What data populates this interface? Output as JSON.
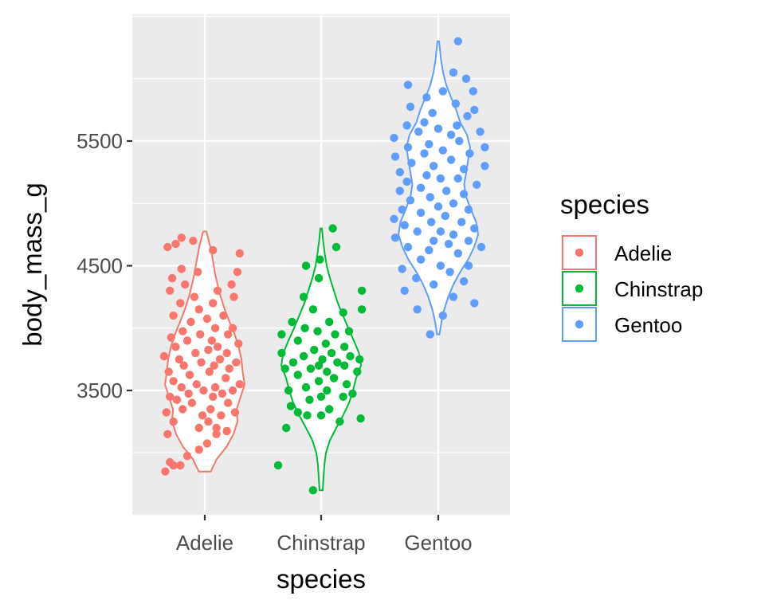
{
  "chart_data": {
    "type": "violin-jitter",
    "title": "",
    "xlabel": "species",
    "ylabel": "body_mass_g",
    "categories": [
      "Adelie",
      "Chinstrap",
      "Gentoo"
    ],
    "colors": [
      "#F8766D",
      "#00BA38",
      "#619CFF"
    ],
    "y_ticks": [
      3500,
      4500,
      5500
    ],
    "y_tick_labels": [
      "3500",
      "4500",
      "5500"
    ],
    "ylim": [
      2500,
      6500
    ],
    "grid": true,
    "background": "#EBEBEB",
    "legend": {
      "title": "species",
      "placement": "right",
      "entries": [
        "Adelie",
        "Chinstrap",
        "Gentoo"
      ]
    },
    "series": [
      {
        "name": "Adelie",
        "range": [
          2850,
          4775
        ],
        "density": [
          [
            2850,
            0.15
          ],
          [
            2950,
            0.3
          ],
          [
            3050,
            0.55
          ],
          [
            3150,
            0.72
          ],
          [
            3250,
            0.82
          ],
          [
            3350,
            0.8
          ],
          [
            3450,
            0.9
          ],
          [
            3550,
            1.0
          ],
          [
            3650,
            0.95
          ],
          [
            3750,
            0.92
          ],
          [
            3850,
            0.85
          ],
          [
            3950,
            0.75
          ],
          [
            4050,
            0.62
          ],
          [
            4150,
            0.5
          ],
          [
            4250,
            0.4
          ],
          [
            4350,
            0.32
          ],
          [
            4450,
            0.25
          ],
          [
            4550,
            0.2
          ],
          [
            4650,
            0.14
          ],
          [
            4775,
            0.04
          ]
        ],
        "points": [
          [
            -0.34,
            2850
          ],
          [
            -0.27,
            2900
          ],
          [
            -0.21,
            2900
          ],
          [
            -0.3,
            2925
          ],
          [
            -0.15,
            2975
          ],
          [
            -0.05,
            3025
          ],
          [
            0.02,
            3075
          ],
          [
            -0.32,
            3150
          ],
          [
            0.1,
            3150
          ],
          [
            0.19,
            3175
          ],
          [
            -0.05,
            3200
          ],
          [
            0.1,
            3200
          ],
          [
            -0.27,
            3250
          ],
          [
            0.03,
            3250
          ],
          [
            -0.02,
            3300
          ],
          [
            0.14,
            3300
          ],
          [
            -0.33,
            3325
          ],
          [
            0.26,
            3325
          ],
          [
            -0.19,
            3350
          ],
          [
            0.05,
            3350
          ],
          [
            -0.11,
            3400
          ],
          [
            0.2,
            3400
          ],
          [
            -0.24,
            3425
          ],
          [
            0.07,
            3450
          ],
          [
            -0.3,
            3450
          ],
          [
            -0.14,
            3475
          ],
          [
            0.15,
            3475
          ],
          [
            -0.01,
            3500
          ],
          [
            0.24,
            3500
          ],
          [
            -0.2,
            3525
          ],
          [
            0.09,
            3525
          ],
          [
            0.3,
            3550
          ],
          [
            -0.07,
            3550
          ],
          [
            -0.27,
            3575
          ],
          [
            0.18,
            3600
          ],
          [
            -0.13,
            3625
          ],
          [
            0.04,
            3650
          ],
          [
            -0.31,
            3650
          ],
          [
            0.21,
            3675
          ],
          [
            -0.18,
            3700
          ],
          [
            0.08,
            3700
          ],
          [
            -0.03,
            3725
          ],
          [
            0.27,
            3725
          ],
          [
            -0.22,
            3750
          ],
          [
            0.13,
            3750
          ],
          [
            -0.35,
            3775
          ],
          [
            -0.08,
            3800
          ],
          [
            0.19,
            3800
          ],
          [
            0.03,
            3825
          ],
          [
            -0.25,
            3850
          ],
          [
            0.11,
            3850
          ],
          [
            0.29,
            3875
          ],
          [
            -0.15,
            3900
          ],
          [
            0.06,
            3900
          ],
          [
            -0.29,
            3925
          ],
          [
            -0.04,
            3950
          ],
          [
            0.2,
            3950
          ],
          [
            -0.19,
            3975
          ],
          [
            0.09,
            4000
          ],
          [
            0.24,
            4000
          ],
          [
            -0.12,
            4050
          ],
          [
            0.02,
            4075
          ],
          [
            -0.27,
            4100
          ],
          [
            0.16,
            4100
          ],
          [
            -0.05,
            4150
          ],
          [
            0.07,
            4200
          ],
          [
            -0.21,
            4200
          ],
          [
            0.25,
            4250
          ],
          [
            -0.09,
            4250
          ],
          [
            -0.3,
            4300
          ],
          [
            0.11,
            4300
          ],
          [
            0.23,
            4350
          ],
          [
            -0.17,
            4350
          ],
          [
            -0.28,
            4400
          ],
          [
            -0.06,
            4450
          ],
          [
            0.28,
            4450
          ],
          [
            -0.2,
            4475
          ],
          [
            -0.32,
            4650
          ],
          [
            0.07,
            4625
          ],
          [
            -0.25,
            4675
          ],
          [
            -0.1,
            4700
          ],
          [
            -0.2,
            4725
          ],
          [
            0.3,
            4600
          ]
        ]
      },
      {
        "name": "Chinstrap",
        "range": [
          2700,
          4800
        ],
        "density": [
          [
            2700,
            0.04
          ],
          [
            2800,
            0.06
          ],
          [
            2900,
            0.08
          ],
          [
            3000,
            0.12
          ],
          [
            3100,
            0.22
          ],
          [
            3200,
            0.38
          ],
          [
            3300,
            0.55
          ],
          [
            3400,
            0.7
          ],
          [
            3500,
            0.8
          ],
          [
            3600,
            0.88
          ],
          [
            3700,
            1.0
          ],
          [
            3800,
            0.95
          ],
          [
            3900,
            0.82
          ],
          [
            4000,
            0.68
          ],
          [
            4100,
            0.55
          ],
          [
            4200,
            0.42
          ],
          [
            4300,
            0.32
          ],
          [
            4400,
            0.22
          ],
          [
            4500,
            0.14
          ],
          [
            4600,
            0.09
          ],
          [
            4700,
            0.05
          ],
          [
            4800,
            0.02
          ]
        ],
        "points": [
          [
            -0.07,
            2700
          ],
          [
            -0.37,
            2900
          ],
          [
            -0.3,
            3200
          ],
          [
            0.16,
            3250
          ],
          [
            0.34,
            3275
          ],
          [
            0.0,
            3300
          ],
          [
            -0.12,
            3300
          ],
          [
            -0.2,
            3325
          ],
          [
            0.07,
            3350
          ],
          [
            -0.26,
            3375
          ],
          [
            -0.1,
            3425
          ],
          [
            0.19,
            3450
          ],
          [
            0.0,
            3450
          ],
          [
            0.27,
            3475
          ],
          [
            -0.28,
            3500
          ],
          [
            0.05,
            3500
          ],
          [
            -0.13,
            3525
          ],
          [
            0.22,
            3550
          ],
          [
            -0.02,
            3575
          ],
          [
            0.11,
            3600
          ],
          [
            -0.2,
            3625
          ],
          [
            0.31,
            3650
          ],
          [
            0.05,
            3650
          ],
          [
            -0.09,
            3675
          ],
          [
            -0.31,
            3675
          ],
          [
            0.2,
            3700
          ],
          [
            -0.02,
            3700
          ],
          [
            -0.24,
            3725
          ],
          [
            0.14,
            3725
          ],
          [
            0.33,
            3750
          ],
          [
            0.01,
            3750
          ],
          [
            -0.15,
            3775
          ],
          [
            0.25,
            3775
          ],
          [
            -0.34,
            3800
          ],
          [
            0.09,
            3800
          ],
          [
            -0.06,
            3825
          ],
          [
            0.2,
            3850
          ],
          [
            0.04,
            3875
          ],
          [
            -0.2,
            3900
          ],
          [
            0.12,
            3950
          ],
          [
            -0.03,
            3975
          ],
          [
            -0.34,
            3950
          ],
          [
            0.24,
            3975
          ],
          [
            -0.14,
            4000
          ],
          [
            0.07,
            4050
          ],
          [
            -0.25,
            4050
          ],
          [
            0.19,
            4125
          ],
          [
            -0.07,
            4150
          ],
          [
            0.35,
            4150
          ],
          [
            -0.15,
            4250
          ],
          [
            0.35,
            4300
          ],
          [
            -0.02,
            4400
          ],
          [
            -0.13,
            4500
          ],
          [
            -0.01,
            4550
          ],
          [
            0.13,
            4650
          ],
          [
            0.1,
            4800
          ]
        ]
      },
      {
        "name": "Gentoo",
        "range": [
          3950,
          6300
        ],
        "density": [
          [
            3950,
            0.03
          ],
          [
            4050,
            0.08
          ],
          [
            4150,
            0.15
          ],
          [
            4250,
            0.25
          ],
          [
            4350,
            0.38
          ],
          [
            4450,
            0.55
          ],
          [
            4550,
            0.75
          ],
          [
            4650,
            0.9
          ],
          [
            4750,
            1.0
          ],
          [
            4850,
            0.95
          ],
          [
            4950,
            0.82
          ],
          [
            5050,
            0.7
          ],
          [
            5150,
            0.65
          ],
          [
            5250,
            0.7
          ],
          [
            5350,
            0.75
          ],
          [
            5450,
            0.8
          ],
          [
            5550,
            0.72
          ],
          [
            5650,
            0.55
          ],
          [
            5750,
            0.45
          ],
          [
            5850,
            0.32
          ],
          [
            5950,
            0.2
          ],
          [
            6050,
            0.12
          ],
          [
            6150,
            0.07
          ],
          [
            6300,
            0.02
          ]
        ],
        "points": [
          [
            -0.07,
            3950
          ],
          [
            0.04,
            4100
          ],
          [
            -0.18,
            4150
          ],
          [
            0.31,
            4200
          ],
          [
            0.13,
            4250
          ],
          [
            -0.29,
            4300
          ],
          [
            -0.04,
            4350
          ],
          [
            0.22,
            4375
          ],
          [
            -0.19,
            4400
          ],
          [
            0.1,
            4450
          ],
          [
            -0.31,
            4475
          ],
          [
            0.26,
            4500
          ],
          [
            0.02,
            4500
          ],
          [
            -0.15,
            4550
          ],
          [
            0.17,
            4600
          ],
          [
            -0.08,
            4625
          ],
          [
            0.37,
            4650
          ],
          [
            -0.26,
            4650
          ],
          [
            0.09,
            4675
          ],
          [
            -0.04,
            4700
          ],
          [
            0.26,
            4700
          ],
          [
            -0.37,
            4725
          ],
          [
            0.13,
            4750
          ],
          [
            -0.18,
            4775
          ],
          [
            0.02,
            4775
          ],
          [
            0.31,
            4800
          ],
          [
            -0.29,
            4825
          ],
          [
            -0.06,
            4850
          ],
          [
            0.2,
            4850
          ],
          [
            -0.38,
            4875
          ],
          [
            0.06,
            4900
          ],
          [
            -0.15,
            4925
          ],
          [
            0.26,
            4950
          ],
          [
            -0.31,
            4950
          ],
          [
            0.0,
            4975
          ],
          [
            0.13,
            5000
          ],
          [
            -0.24,
            5025
          ],
          [
            -0.07,
            5050
          ],
          [
            0.22,
            5075
          ],
          [
            -0.33,
            5100
          ],
          [
            0.07,
            5100
          ],
          [
            -0.15,
            5125
          ],
          [
            0.33,
            5150
          ],
          [
            -0.27,
            5175
          ],
          [
            0.02,
            5200
          ],
          [
            0.17,
            5200
          ],
          [
            -0.1,
            5225
          ],
          [
            -0.33,
            5250
          ],
          [
            0.22,
            5275
          ],
          [
            -0.04,
            5300
          ],
          [
            0.4,
            5300
          ],
          [
            -0.23,
            5325
          ],
          [
            0.11,
            5350
          ],
          [
            -0.37,
            5375
          ],
          [
            -0.12,
            5400
          ],
          [
            0.27,
            5400
          ],
          [
            0.04,
            5425
          ],
          [
            0.4,
            5450
          ],
          [
            -0.26,
            5450
          ],
          [
            -0.08,
            5475
          ],
          [
            0.18,
            5500
          ],
          [
            -0.38,
            5525
          ],
          [
            0.11,
            5550
          ],
          [
            -0.17,
            5575
          ],
          [
            0.36,
            5575
          ],
          [
            0.0,
            5600
          ],
          [
            -0.27,
            5625
          ],
          [
            0.16,
            5625
          ],
          [
            -0.12,
            5650
          ],
          [
            0.25,
            5700
          ],
          [
            -0.05,
            5725
          ],
          [
            0.31,
            5750
          ],
          [
            -0.24,
            5775
          ],
          [
            0.15,
            5800
          ],
          [
            -0.1,
            5850
          ],
          [
            0.04,
            5900
          ],
          [
            0.3,
            5900
          ],
          [
            -0.26,
            5950
          ],
          [
            0.24,
            6000
          ],
          [
            0.13,
            6050
          ],
          [
            0.17,
            6300
          ]
        ]
      }
    ]
  }
}
